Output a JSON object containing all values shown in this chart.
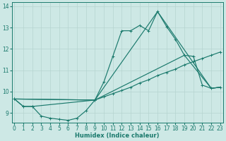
{
  "xlabel": "Humidex (Indice chaleur)",
  "xlim": [
    -0.3,
    23.3
  ],
  "ylim": [
    8.55,
    14.2
  ],
  "xticks": [
    0,
    1,
    2,
    3,
    4,
    5,
    6,
    7,
    8,
    9,
    10,
    11,
    12,
    13,
    14,
    15,
    16,
    17,
    18,
    19,
    20,
    21,
    22,
    23
  ],
  "yticks": [
    9,
    10,
    11,
    12,
    13,
    14
  ],
  "bg_color": "#cde8e5",
  "line_color": "#1b7a6d",
  "grid_color": "#b5d4d0",
  "curve1_x": [
    0,
    1,
    2,
    3,
    4,
    5,
    6,
    7,
    8,
    9,
    10,
    11,
    12,
    13,
    14,
    15,
    16,
    17,
    18,
    19,
    20,
    21,
    22,
    23
  ],
  "curve1_y": [
    9.65,
    9.3,
    9.3,
    8.85,
    8.75,
    8.7,
    8.65,
    8.75,
    9.1,
    9.6,
    10.45,
    11.65,
    12.85,
    12.85,
    13.1,
    12.85,
    13.75,
    13.05,
    12.45,
    11.7,
    11.65,
    10.3,
    10.15,
    10.2
  ],
  "curve2_x": [
    0,
    1,
    2,
    9,
    10,
    11,
    12,
    13,
    14,
    15,
    16,
    17,
    18,
    19,
    20,
    21,
    22,
    23
  ],
  "curve2_y": [
    9.65,
    9.3,
    9.3,
    9.6,
    9.75,
    9.9,
    10.05,
    10.2,
    10.4,
    10.55,
    10.75,
    10.9,
    11.05,
    11.25,
    11.4,
    11.55,
    11.7,
    11.85
  ],
  "curve3_x": [
    0,
    9,
    16,
    22,
    23
  ],
  "curve3_y": [
    9.65,
    9.6,
    13.75,
    10.15,
    10.2
  ],
  "curve4_x": [
    0,
    9,
    19,
    22,
    23
  ],
  "curve4_y": [
    9.65,
    9.6,
    11.7,
    10.15,
    10.2
  ]
}
